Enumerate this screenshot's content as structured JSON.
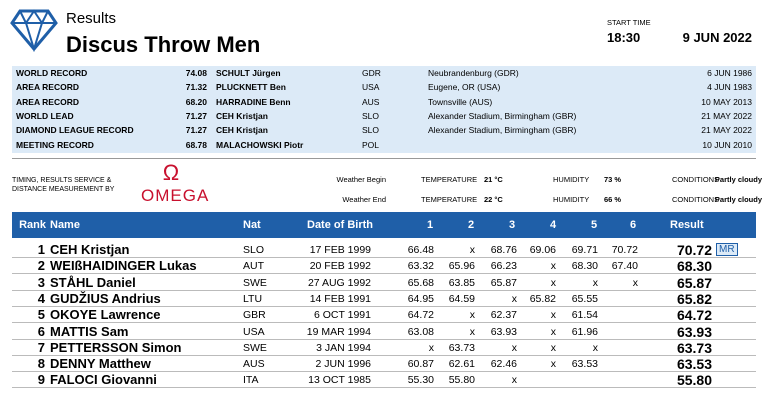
{
  "header": {
    "title": "Results",
    "event": "Discus Throw Men",
    "start_time_label": "START TIME",
    "start_time": "18:30",
    "date": "9 JUN 2022"
  },
  "records": {
    "rows": [
      {
        "type": "WORLD RECORD",
        "mark": "74.08",
        "name": "SCHULT Jürgen",
        "nat": "GDR",
        "venue": "Neubrandenburg (GDR)",
        "date": "6 JUN 1986"
      },
      {
        "type": "AREA RECORD",
        "mark": "71.32",
        "name": "PLUCKNETT Ben",
        "nat": "USA",
        "venue": "Eugene, OR (USA)",
        "date": "4 JUN 1983"
      },
      {
        "type": "AREA RECORD",
        "mark": "68.20",
        "name": "HARRADINE Benn",
        "nat": "AUS",
        "venue": "Townsville (AUS)",
        "date": "10 MAY 2013"
      },
      {
        "type": "WORLD LEAD",
        "mark": "71.27",
        "name": "CEH Kristjan",
        "nat": "SLO",
        "venue": "Alexander Stadium, Birmingham (GBR)",
        "date": "21 MAY 2022"
      },
      {
        "type": "DIAMOND LEAGUE RECORD",
        "mark": "71.27",
        "name": "CEH Kristjan",
        "nat": "SLO",
        "venue": "Alexander Stadium, Birmingham (GBR)",
        "date": "21 MAY 2022"
      },
      {
        "type": "MEETING RECORD",
        "mark": "68.78",
        "name": "MALACHOWSKI Piotr",
        "nat": "POL",
        "venue": null,
        "date": "10 JUN 2010"
      }
    ]
  },
  "timing": {
    "label": "TIMING, RESULTS SERVICE & DISTANCE MEASUREMENT BY",
    "sponsor_symbol": "Ω",
    "sponsor": "OMEGA"
  },
  "weather": [
    {
      "label": "Weather Begin",
      "temperature_label": "TEMPERATURE",
      "temperature": "21 °C",
      "humidity_label": "HUMIDITY",
      "humidity": "73 %",
      "conditions_label": "CONDITIONS",
      "conditions": "Partly cloudy"
    },
    {
      "label": "Weather End",
      "temperature_label": "TEMPERATURE",
      "temperature": "22 °C",
      "humidity_label": "HUMIDITY",
      "humidity": "66 %",
      "conditions_label": "CONDITIONS",
      "conditions": "Partly cloudy"
    }
  ],
  "results": {
    "columns": [
      "Rank",
      "Name",
      "Nat",
      "Date of Birth",
      "1",
      "2",
      "3",
      "4",
      "5",
      "6",
      "Result"
    ],
    "rows": [
      {
        "rank": 1,
        "name": "CEH Kristjan",
        "nat": "SLO",
        "dob": "17 FEB 1999",
        "attempts": [
          "66.48",
          "x",
          "68.76",
          "69.06",
          "69.71",
          "70.72"
        ],
        "result": "70.72",
        "note": "MR"
      },
      {
        "rank": 2,
        "name": "WEIßHAIDINGER Lukas",
        "nat": "AUT",
        "dob": "20 FEB 1992",
        "attempts": [
          "63.32",
          "65.96",
          "66.23",
          "x",
          "68.30",
          "67.40"
        ],
        "result": "68.30"
      },
      {
        "rank": 3,
        "name": "STÅHL Daniel",
        "nat": "SWE",
        "dob": "27 AUG 1992",
        "attempts": [
          "65.68",
          "63.85",
          "65.87",
          "x",
          "x",
          "x"
        ],
        "result": "65.87"
      },
      {
        "rank": 4,
        "name": "GUDŽIUS Andrius",
        "nat": "LTU",
        "dob": "14 FEB 1991",
        "attempts": [
          "64.95",
          "64.59",
          "x",
          "65.82",
          "65.55",
          null
        ],
        "result": "65.82"
      },
      {
        "rank": 5,
        "name": "OKOYE Lawrence",
        "nat": "GBR",
        "dob": "6 OCT 1991",
        "attempts": [
          "64.72",
          "x",
          "62.37",
          "x",
          "61.54",
          null
        ],
        "result": "64.72"
      },
      {
        "rank": 6,
        "name": "MATTIS Sam",
        "nat": "USA",
        "dob": "19 MAR 1994",
        "attempts": [
          "63.08",
          "x",
          "63.93",
          "x",
          "61.96",
          null
        ],
        "result": "63.93"
      },
      {
        "rank": 7,
        "name": "PETTERSSON Simon",
        "nat": "SWE",
        "dob": "3 JAN 1994",
        "attempts": [
          "x",
          "63.73",
          "x",
          "x",
          "x",
          null
        ],
        "result": "63.73"
      },
      {
        "rank": 8,
        "name": "DENNY Matthew",
        "nat": "AUS",
        "dob": "2 JUN 1996",
        "attempts": [
          "60.87",
          "62.61",
          "62.46",
          "x",
          "63.53",
          null
        ],
        "result": "63.53"
      },
      {
        "rank": 9,
        "name": "FALOCI Giovanni",
        "nat": "ITA",
        "dob": "13 OCT 1985",
        "attempts": [
          "55.30",
          "55.80",
          "x",
          null,
          null,
          null
        ],
        "result": "55.80"
      }
    ]
  }
}
